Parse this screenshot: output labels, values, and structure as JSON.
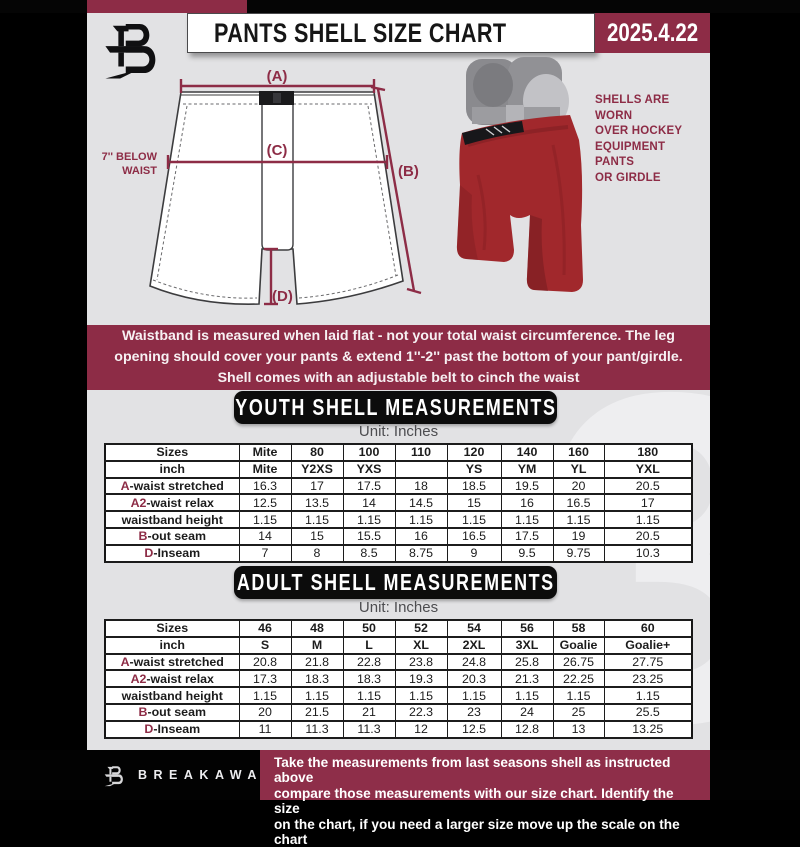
{
  "header": {
    "title": "PANTS SHELL SIZE CHART",
    "date": "2025.4.22"
  },
  "diagram": {
    "below_waist": [
      "7'' BELOW",
      "WAIST"
    ],
    "labels": {
      "a": "(A)",
      "b": "(B)",
      "c": "(C)",
      "d": "(D)"
    }
  },
  "shell_note": [
    "SHELLS ARE WORN",
    "OVER HOCKEY",
    "EQUIPMENT PANTS",
    "OR GIRDLE"
  ],
  "notice": {
    "lines": [
      "Waistband is measured when laid flat - not your total waist circumference. The leg",
      "opening should cover your pants & extend 1''-2'' past the bottom of your pant/girdle.",
      "Shell comes with an adjustable belt to cinch the waist"
    ]
  },
  "youth": {
    "title": "YOUTH SHELL MEASUREMENTS",
    "unit": "Unit: Inches",
    "table": {
      "rows": [
        {
          "prefix": "",
          "label": "Sizes",
          "bold": true,
          "cells": [
            "Mite",
            "80",
            "100",
            "110",
            "120",
            "140",
            "160",
            "180"
          ]
        },
        {
          "prefix": "",
          "label": "inch",
          "bold": true,
          "cells": [
            "Mite",
            "Y2XS",
            "YXS",
            "",
            "YS",
            "YM",
            "YL",
            "YXL"
          ]
        },
        {
          "prefix": "A",
          "label": "-waist stretched",
          "bold": false,
          "cells": [
            "16.3",
            "17",
            "17.5",
            "18",
            "18.5",
            "19.5",
            "20",
            "20.5"
          ]
        },
        {
          "prefix": "A2",
          "label": "-waist relax",
          "bold": false,
          "cells": [
            "12.5",
            "13.5",
            "14",
            "14.5",
            "15",
            "16",
            "16.5",
            "17"
          ]
        },
        {
          "prefix": "",
          "label": "waistband height",
          "bold": false,
          "cells": [
            "1.15",
            "1.15",
            "1.15",
            "1.15",
            "1.15",
            "1.15",
            "1.15",
            "1.15"
          ]
        },
        {
          "prefix": "B",
          "label": "-out seam",
          "bold": false,
          "cells": [
            "14",
            "15",
            "15.5",
            "16",
            "16.5",
            "17.5",
            "19",
            "20.5"
          ]
        },
        {
          "prefix": "D",
          "label": "-Inseam",
          "bold": false,
          "cells": [
            "7",
            "8",
            "8.5",
            "8.75",
            "9",
            "9.5",
            "9.75",
            "10.3"
          ]
        }
      ]
    }
  },
  "adult": {
    "title": "ADULT SHELL MEASUREMENTS",
    "unit": "Unit: Inches",
    "table": {
      "rows": [
        {
          "prefix": "",
          "label": "Sizes",
          "bold": true,
          "cells": [
            "46",
            "48",
            "50",
            "52",
            "54",
            "56",
            "58",
            "60"
          ]
        },
        {
          "prefix": "",
          "label": "inch",
          "bold": true,
          "cells": [
            "S",
            "M",
            "L",
            "XL",
            "2XL",
            "3XL",
            "Goalie",
            "Goalie+"
          ]
        },
        {
          "prefix": "A",
          "label": "-waist stretched",
          "bold": false,
          "cells": [
            "20.8",
            "21.8",
            "22.8",
            "23.8",
            "24.8",
            "25.8",
            "26.75",
            "27.75"
          ]
        },
        {
          "prefix": "A2",
          "label": "-waist relax",
          "bold": false,
          "cells": [
            "17.3",
            "18.3",
            "18.3",
            "19.3",
            "20.3",
            "21.3",
            "22.25",
            "23.25"
          ]
        },
        {
          "prefix": "",
          "label": "waistband height",
          "bold": false,
          "cells": [
            "1.15",
            "1.15",
            "1.15",
            "1.15",
            "1.15",
            "1.15",
            "1.15",
            "1.15"
          ]
        },
        {
          "prefix": "B",
          "label": "-out seam",
          "bold": false,
          "cells": [
            "20",
            "21.5",
            "21",
            "22.3",
            "23",
            "24",
            "25",
            "25.5"
          ]
        },
        {
          "prefix": "D",
          "label": "-Inseam",
          "bold": false,
          "cells": [
            "11",
            "11.3",
            "11.3",
            "12",
            "12.5",
            "12.8",
            "13",
            "13.25"
          ]
        }
      ]
    }
  },
  "footer": {
    "brand": "BREAKAWAY",
    "lines": [
      "Take the measurements from last seasons shell as instructed above",
      "compare those measurements  with our size chart. Identify the size",
      "on the chart, if you need a larger size move up the scale on the chart"
    ]
  },
  "watermark_glyph": "3",
  "colors": {
    "maroon": "#8d2c46",
    "banner_black": "#0c0c0c",
    "document_gray": "#e2e2e4",
    "shell_red": "#a1282c",
    "table_line": "#1c1c1c"
  }
}
